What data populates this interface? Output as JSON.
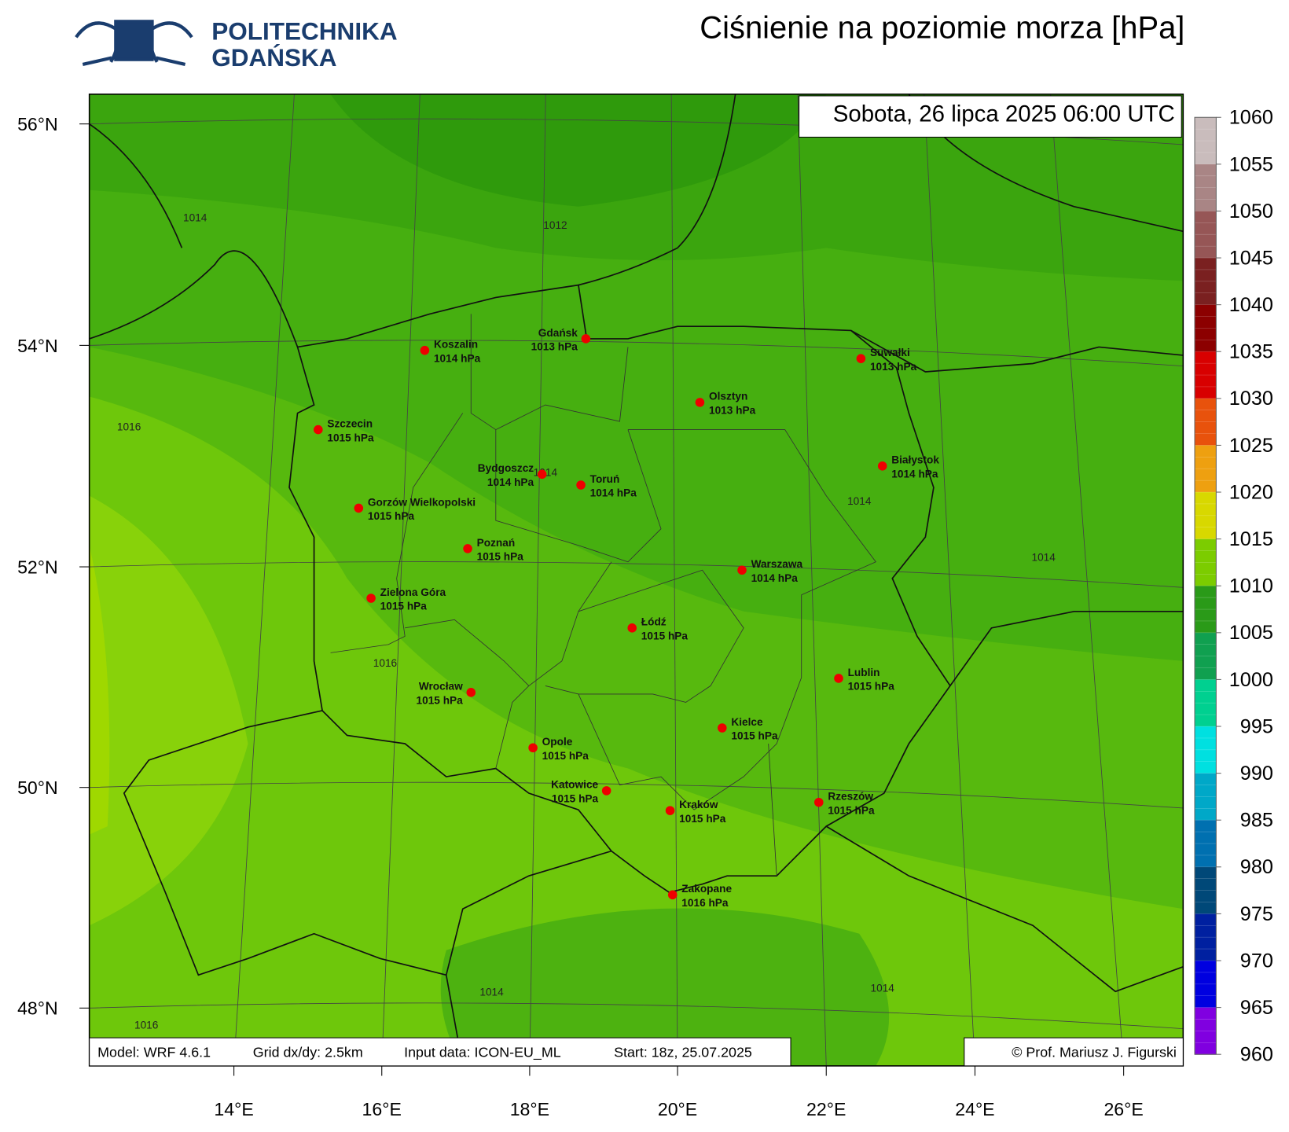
{
  "logo": {
    "line1": "POLITECHNIKA",
    "line2": "GDAŃSKA"
  },
  "title": "Ciśnienie na poziomie morza [hPa]",
  "valid_time": "Sobota, 26 lipca 2025 06:00 UTC",
  "footer": {
    "model": "Model: WRF 4.6.1",
    "grid": "Grid dx/dy: 2.5km",
    "input": "Input data: ICON-EU_ML",
    "start": "Start: 18z, 25.07.2025",
    "credit": "© Prof. Mariusz J. Figurski"
  },
  "latitude_labels": [
    "56°N",
    "54°N",
    "52°N",
    "50°N",
    "48°N"
  ],
  "longitude_labels": [
    "14°E",
    "16°E",
    "18°E",
    "20°E",
    "22°E",
    "24°E",
    "26°E"
  ],
  "contour_labels": [
    "1014",
    "1012",
    "1016",
    "1014",
    "1014",
    "1014",
    "1016",
    "1014",
    "1014",
    "1016"
  ],
  "cities": [
    {
      "name": "Koszalin",
      "pressure": "1014 hPa"
    },
    {
      "name": "Gdańsk",
      "pressure": "1013 hPa"
    },
    {
      "name": "Suwałki",
      "pressure": "1013 hPa"
    },
    {
      "name": "Olsztyn",
      "pressure": "1013 hPa"
    },
    {
      "name": "Szczecin",
      "pressure": "1015 hPa"
    },
    {
      "name": "Bydgoszcz",
      "pressure": "1014 hPa"
    },
    {
      "name": "Toruń",
      "pressure": "1014 hPa"
    },
    {
      "name": "Białystok",
      "pressure": "1014 hPa"
    },
    {
      "name": "Gorzów Wielkopolski",
      "pressure": "1015 hPa"
    },
    {
      "name": "Poznań",
      "pressure": "1015 hPa"
    },
    {
      "name": "Warszawa",
      "pressure": "1014 hPa"
    },
    {
      "name": "Zielona Góra",
      "pressure": "1015 hPa"
    },
    {
      "name": "Łódź",
      "pressure": "1015 hPa"
    },
    {
      "name": "Lublin",
      "pressure": "1015 hPa"
    },
    {
      "name": "Wrocław",
      "pressure": "1015 hPa"
    },
    {
      "name": "Kielce",
      "pressure": "1015 hPa"
    },
    {
      "name": "Opole",
      "pressure": "1015 hPa"
    },
    {
      "name": "Katowice",
      "pressure": "1015 hPa"
    },
    {
      "name": "Kraków",
      "pressure": "1015 hPa"
    },
    {
      "name": "Rzeszów",
      "pressure": "1015 hPa"
    },
    {
      "name": "Zakopane",
      "pressure": "1016 hPa"
    }
  ],
  "colorbar": {
    "ticks": [
      1060,
      1055,
      1050,
      1045,
      1040,
      1035,
      1030,
      1025,
      1020,
      1015,
      1010,
      1005,
      1000,
      995,
      990,
      985,
      980,
      975,
      970,
      965,
      960
    ],
    "colors": [
      "#c9bcbc",
      "#a98585",
      "#965656",
      "#7a2020",
      "#8c0000",
      "#d80000",
      "#e8520c",
      "#eea010",
      "#d8d800",
      "#7ccc00",
      "#2a9a18",
      "#10a050",
      "#00d090",
      "#00e0e0",
      "#00a8c8",
      "#0070b0",
      "#004878",
      "#0020a0",
      "#0000e0",
      "#8000e0"
    ]
  }
}
